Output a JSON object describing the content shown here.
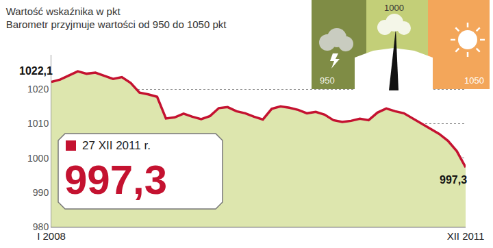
{
  "chart_data": {
    "type": "line",
    "title": "Wartość wskaźnika w pkt",
    "subtitle": "Barometr przyjmuje wartości od 950 do 1050 pkt",
    "categories": [
      "I 2008",
      null,
      null,
      null,
      null,
      null,
      null,
      null,
      null,
      null,
      null,
      null,
      null,
      null,
      null,
      null,
      null,
      null,
      null,
      null,
      null,
      null,
      null,
      null,
      null,
      null,
      null,
      null,
      null,
      null,
      null,
      null,
      null,
      null,
      null,
      null,
      null,
      null,
      null,
      null,
      null,
      null,
      null,
      null,
      null,
      null,
      null,
      "XII 2011"
    ],
    "values": [
      1022.1,
      1022.8,
      1024.0,
      1025.2,
      1024.5,
      1024.8,
      1023.9,
      1023.0,
      1023.5,
      1021.8,
      1019.0,
      1018.5,
      1017.8,
      1011.5,
      1011.8,
      1012.9,
      1012.0,
      1011.3,
      1012.2,
      1014.5,
      1014.8,
      1013.6,
      1013.0,
      1012.0,
      1011.2,
      1014.3,
      1015.0,
      1014.6,
      1014.0,
      1013.0,
      1013.4,
      1012.6,
      1011.0,
      1010.5,
      1010.8,
      1011.4,
      1011.0,
      1013.2,
      1014.4,
      1013.6,
      1013.0,
      1011.5,
      1010.0,
      1008.5,
      1007.0,
      1005.0,
      1002.0,
      997.3
    ],
    "color": "#c41230",
    "ylim": [
      980,
      1030
    ],
    "yticks": [
      980,
      990,
      1000,
      1010,
      1020
    ],
    "grid": true,
    "annotations": [
      "1022,1",
      "997,3",
      "27 XII 2011 r.",
      "997,3"
    ],
    "gauge_labels": [
      950,
      1000,
      1050
    ]
  }
}
